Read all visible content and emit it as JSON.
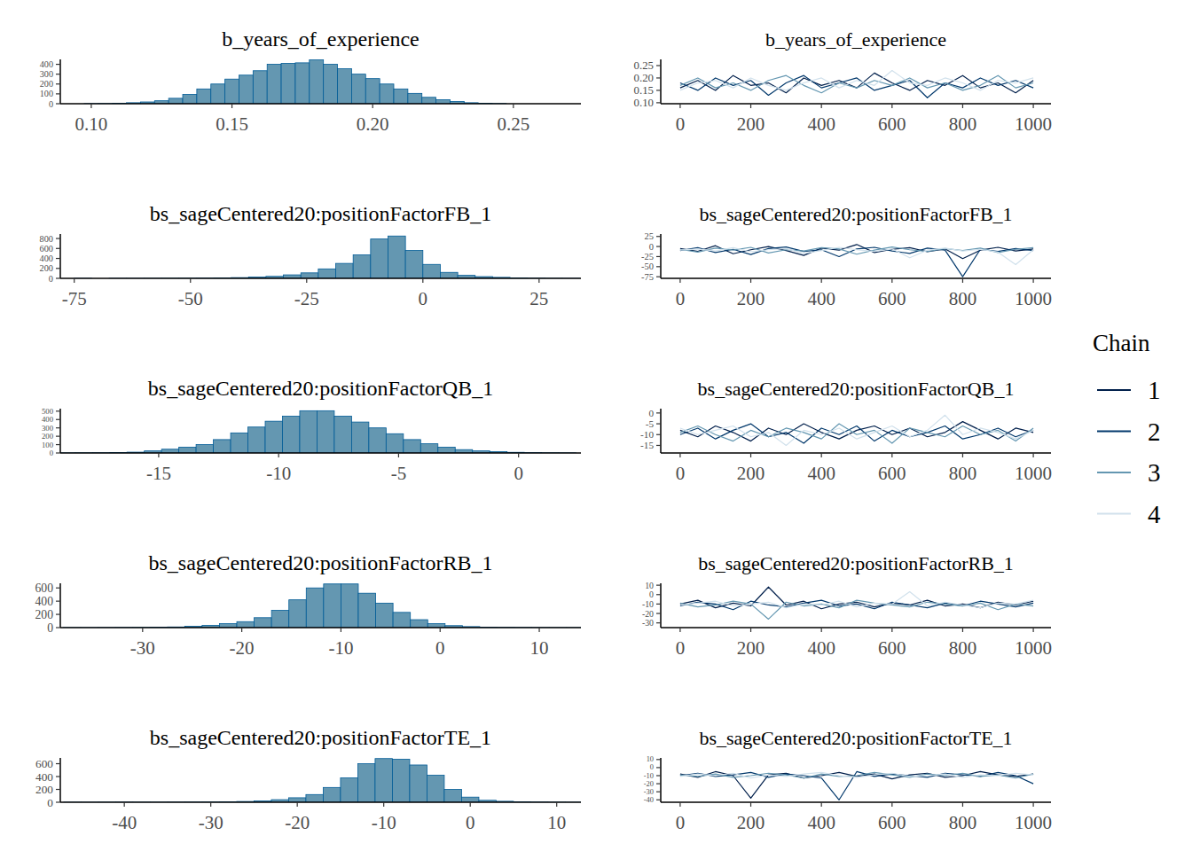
{
  "chart_data": [
    {
      "type": "histogram",
      "title": "b_years_of_experience",
      "color": "#6497b1",
      "bins": [
        0.0975,
        0.1025,
        0.1075,
        0.1125,
        0.1175,
        0.1225,
        0.1275,
        0.1325,
        0.1375,
        0.1425,
        0.1475,
        0.1525,
        0.1575,
        0.1625,
        0.1675,
        0.1725,
        0.1775,
        0.1825,
        0.1875,
        0.1925,
        0.1975,
        0.2025,
        0.2075,
        0.2125,
        0.2175,
        0.2225,
        0.2275,
        0.2325,
        0.2375,
        0.2425,
        0.2475
      ],
      "counts": [
        1,
        2,
        5,
        10,
        18,
        30,
        55,
        95,
        150,
        200,
        250,
        290,
        335,
        400,
        410,
        415,
        445,
        400,
        355,
        300,
        255,
        200,
        150,
        105,
        65,
        40,
        22,
        10,
        5,
        2
      ],
      "xlim": [
        0.089,
        0.274
      ],
      "xticks": [
        {
          "value": 0.1,
          "label": "0.10"
        },
        {
          "value": 0.15,
          "label": "0.15"
        },
        {
          "value": 0.2,
          "label": "0.20"
        },
        {
          "value": 0.25,
          "label": "0.25"
        }
      ],
      "ylim": [
        0,
        450
      ],
      "yticks": [
        0,
        100,
        200,
        300,
        400
      ]
    },
    {
      "type": "line",
      "title": "b_years_of_experience",
      "x": [
        0,
        50,
        100,
        150,
        200,
        250,
        300,
        350,
        400,
        450,
        500,
        550,
        600,
        650,
        700,
        750,
        800,
        850,
        900,
        950,
        1000
      ],
      "series": [
        {
          "color": "#011f4b",
          "values": [
            0.16,
            0.19,
            0.15,
            0.21,
            0.17,
            0.18,
            0.14,
            0.2,
            0.17,
            0.19,
            0.16,
            0.22,
            0.18,
            0.15,
            0.19,
            0.17,
            0.21,
            0.16,
            0.18,
            0.14,
            0.19
          ]
        },
        {
          "color": "#03396c",
          "values": [
            0.18,
            0.15,
            0.2,
            0.17,
            0.19,
            0.13,
            0.18,
            0.21,
            0.16,
            0.18,
            0.2,
            0.15,
            0.17,
            0.19,
            0.12,
            0.18,
            0.16,
            0.2,
            0.17,
            0.19,
            0.16
          ]
        },
        {
          "color": "#6497b1",
          "values": [
            0.17,
            0.2,
            0.16,
            0.18,
            0.15,
            0.19,
            0.21,
            0.17,
            0.14,
            0.18,
            0.16,
            0.19,
            0.17,
            0.2,
            0.16,
            0.18,
            0.15,
            0.17,
            0.21,
            0.16,
            0.18
          ]
        },
        {
          "color": "#d1e1ec",
          "values": [
            0.15,
            0.18,
            0.19,
            0.16,
            0.2,
            0.17,
            0.15,
            0.18,
            0.2,
            0.16,
            0.19,
            0.17,
            0.23,
            0.18,
            0.17,
            0.2,
            0.18,
            0.15,
            0.19,
            0.18,
            0.2
          ]
        }
      ],
      "xlim": [
        -55,
        1050
      ],
      "xticks": [
        0,
        200,
        400,
        600,
        800,
        1000
      ],
      "ylim": [
        0.096,
        0.275
      ],
      "yticks": [
        {
          "value": 0.1,
          "label": "0.10"
        },
        {
          "value": 0.15,
          "label": "0.15"
        },
        {
          "value": 0.2,
          "label": "0.20"
        },
        {
          "value": 0.25,
          "label": "0.25"
        }
      ]
    },
    {
      "type": "histogram",
      "title": "bs_sageCentered20:positionFactorFB_1",
      "color": "#6497b1",
      "bins": [
        -78.75,
        -75,
        -71.25,
        -67.5,
        -63.75,
        -60,
        -56.25,
        -52.5,
        -48.75,
        -45,
        -41.25,
        -37.5,
        -33.75,
        -30,
        -26.25,
        -22.5,
        -18.75,
        -15,
        -11.25,
        -7.5,
        -3.75,
        0,
        3.75,
        7.5,
        11.25,
        15,
        18.75,
        22.5,
        26.25,
        30,
        33.75
      ],
      "counts": [
        0,
        1,
        0,
        1,
        1,
        2,
        3,
        4,
        6,
        10,
        15,
        25,
        40,
        70,
        110,
        190,
        300,
        470,
        790,
        850,
        560,
        280,
        120,
        60,
        35,
        20,
        10,
        5,
        2,
        1
      ],
      "xlim": [
        -78,
        34
      ],
      "xticks": [
        -75,
        -50,
        -25,
        0,
        25
      ],
      "ylim": [
        0,
        890
      ],
      "yticks": [
        0,
        200,
        400,
        600,
        800
      ]
    },
    {
      "type": "line",
      "title": "bs_sageCentered20:positionFactorFB_1",
      "x": [
        0,
        50,
        100,
        150,
        200,
        250,
        300,
        350,
        400,
        450,
        500,
        550,
        600,
        650,
        700,
        750,
        800,
        850,
        900,
        950,
        1000
      ],
      "series": [
        {
          "color": "#011f4b",
          "values": [
            -5,
            -12,
            2,
            -18,
            -8,
            0,
            -10,
            -22,
            -4,
            -9,
            5,
            -15,
            -7,
            -3,
            -13,
            -6,
            -30,
            -9,
            -2,
            -11,
            -6
          ]
        },
        {
          "color": "#03396c",
          "values": [
            -10,
            -3,
            -15,
            -7,
            -20,
            -5,
            -1,
            -12,
            -8,
            -25,
            -6,
            -2,
            -11,
            -17,
            -4,
            -9,
            -75,
            -7,
            -12,
            -5,
            -10
          ]
        },
        {
          "color": "#6497b1",
          "values": [
            -7,
            -14,
            -4,
            -9,
            -2,
            -16,
            -8,
            -11,
            -3,
            -6,
            -19,
            -9,
            -1,
            -8,
            -12,
            -5,
            -10,
            -4,
            -15,
            -7,
            -3
          ]
        },
        {
          "color": "#d1e1ec",
          "values": [
            -9,
            -6,
            -11,
            -3,
            -13,
            -8,
            -5,
            -17,
            -10,
            -2,
            -8,
            -12,
            -6,
            -28,
            -9,
            -4,
            -11,
            -7,
            -14,
            -45,
            -8
          ]
        }
      ],
      "xlim": [
        -55,
        1050
      ],
      "xticks": [
        0,
        200,
        400,
        600,
        800,
        1000
      ],
      "ylim": [
        -79,
        31
      ],
      "yticks": [
        -75,
        -50,
        -25,
        0,
        25
      ]
    },
    {
      "type": "histogram",
      "title": "bs_sageCentered20:positionFactorQB_1",
      "color": "#6497b1",
      "bins": [
        -19.2,
        -18.48,
        -17.76,
        -17.04,
        -16.32,
        -15.6,
        -14.88,
        -14.16,
        -13.44,
        -12.72,
        -12,
        -11.28,
        -10.56,
        -9.84,
        -9.12,
        -8.4,
        -7.68,
        -6.96,
        -6.24,
        -5.52,
        -4.8,
        -4.08,
        -3.36,
        -2.64,
        -1.92,
        -1.2,
        -0.48,
        0.24,
        0.96,
        1.68,
        2.4
      ],
      "counts": [
        1,
        2,
        3,
        5,
        10,
        25,
        45,
        70,
        100,
        160,
        240,
        310,
        380,
        440,
        505,
        505,
        440,
        370,
        300,
        230,
        160,
        110,
        70,
        40,
        25,
        15,
        8,
        4,
        2,
        1
      ],
      "xlim": [
        -19.1,
        2.6
      ],
      "xticks": [
        -15,
        -10,
        -5,
        0
      ],
      "ylim": [
        0,
        530
      ],
      "yticks": [
        0,
        100,
        200,
        300,
        400,
        500
      ]
    },
    {
      "type": "line",
      "title": "bs_sageCentered20:positionFactorQB_1",
      "x": [
        0,
        50,
        100,
        150,
        200,
        250,
        300,
        350,
        400,
        450,
        500,
        550,
        600,
        650,
        700,
        750,
        800,
        850,
        900,
        950,
        1000
      ],
      "series": [
        {
          "name": "1",
          "color": "#011f4b",
          "values": [
            -8,
            -11,
            -6,
            -9,
            -13,
            -7,
            -10,
            -5,
            -9,
            -12,
            -8,
            -6,
            -10,
            -7,
            -11,
            -9,
            -4,
            -8,
            -12,
            -7,
            -9
          ]
        },
        {
          "name": "2",
          "color": "#03396c",
          "values": [
            -10,
            -7,
            -12,
            -8,
            -5,
            -11,
            -9,
            -14,
            -7,
            -10,
            -6,
            -13,
            -8,
            -11,
            -9,
            -6,
            -12,
            -10,
            -7,
            -11,
            -8
          ]
        },
        {
          "name": "3",
          "color": "#6497b1",
          "values": [
            -9,
            -6,
            -10,
            -13,
            -8,
            -11,
            -7,
            -9,
            -12,
            -5,
            -10,
            -8,
            -14,
            -7,
            -9,
            -11,
            -6,
            -10,
            -8,
            -13,
            -7
          ]
        },
        {
          "name": "4",
          "color": "#d1e1ec",
          "values": [
            -7,
            -10,
            -8,
            -6,
            -11,
            -9,
            -15,
            -8,
            -10,
            -7,
            -12,
            -9,
            -6,
            -11,
            -8,
            -1,
            -10,
            -7,
            -9,
            -12,
            -8
          ]
        }
      ],
      "legend": "right",
      "legend_title": "Chain",
      "xlim": [
        -55,
        1050
      ],
      "xticks": [
        0,
        200,
        400,
        600,
        800,
        1000
      ],
      "ylim": [
        -18.5,
        2
      ],
      "yticks": [
        -15,
        -10,
        -5,
        0
      ]
    },
    {
      "type": "histogram",
      "title": "bs_sageCentered20:positionFactorRB_1",
      "color": "#6497b1",
      "bins": [
        -38,
        -36.25,
        -34.5,
        -32.75,
        -31,
        -29.25,
        -27.5,
        -25.75,
        -24,
        -22.25,
        -20.5,
        -18.75,
        -17,
        -15.25,
        -13.5,
        -11.75,
        -10,
        -8.25,
        -6.5,
        -4.75,
        -3,
        -1.25,
        0.5,
        2.25,
        4,
        5.75,
        7.5,
        9.25,
        11,
        12.75,
        14.5
      ],
      "counts": [
        1,
        1,
        2,
        3,
        4,
        6,
        10,
        20,
        35,
        60,
        90,
        150,
        260,
        420,
        600,
        660,
        660,
        520,
        370,
        230,
        120,
        60,
        30,
        15,
        8,
        5,
        3,
        2,
        1,
        1
      ],
      "xlim": [
        -38.3,
        14.2
      ],
      "xticks": [
        -30,
        -20,
        -10,
        0,
        10
      ],
      "ylim": [
        0,
        670
      ],
      "yticks": [
        0,
        200,
        400,
        600
      ]
    },
    {
      "type": "line",
      "title": "bs_sageCentered20:positionFactorRB_1",
      "x": [
        0,
        50,
        100,
        150,
        200,
        250,
        300,
        350,
        400,
        450,
        500,
        550,
        600,
        650,
        700,
        750,
        800,
        850,
        900,
        950,
        1000
      ],
      "series": [
        {
          "color": "#011f4b",
          "values": [
            -10,
            -6,
            -14,
            -9,
            -12,
            8,
            -11,
            -7,
            -15,
            -10,
            -8,
            -13,
            -9,
            -11,
            -6,
            -12,
            -10,
            -14,
            -8,
            -11,
            -7
          ]
        },
        {
          "color": "#03396c",
          "values": [
            -12,
            -8,
            -10,
            -16,
            -7,
            -11,
            -13,
            -9,
            -6,
            -12,
            -10,
            -15,
            -8,
            -11,
            -14,
            -9,
            -12,
            -7,
            -10,
            -13,
            -9
          ]
        },
        {
          "color": "#6497b1",
          "values": [
            -9,
            -13,
            -11,
            -7,
            -10,
            -26,
            -8,
            -12,
            -10,
            -14,
            -6,
            -9,
            -11,
            -13,
            -8,
            -10,
            -12,
            -9,
            -16,
            -10,
            -12
          ]
        },
        {
          "color": "#d1e1ec",
          "values": [
            -11,
            -9,
            -7,
            -12,
            -10,
            -8,
            -14,
            -10,
            -11,
            -7,
            -13,
            -9,
            -10,
            3,
            -12,
            -8,
            -11,
            -14,
            -9,
            -10,
            -6
          ]
        }
      ],
      "xlim": [
        -55,
        1050
      ],
      "xticks": [
        0,
        200,
        400,
        600,
        800,
        1000
      ],
      "ylim": [
        -35,
        12
      ],
      "yticks": [
        -30,
        -20,
        -10,
        0,
        10
      ]
    },
    {
      "type": "histogram",
      "title": "bs_sageCentered20:positionFactorTE_1",
      "color": "#6497b1",
      "bins": [
        -47,
        -45,
        -43,
        -41,
        -39,
        -37,
        -35,
        -33,
        -31,
        -29,
        -27,
        -25,
        -23,
        -21,
        -19,
        -17,
        -15,
        -13,
        -11,
        -9,
        -7,
        -5,
        -3,
        -1,
        1,
        3,
        5,
        7,
        9,
        11,
        13
      ],
      "counts": [
        1,
        1,
        2,
        3,
        2,
        2,
        3,
        4,
        5,
        8,
        12,
        20,
        40,
        70,
        120,
        230,
        380,
        600,
        680,
        670,
        580,
        420,
        200,
        80,
        30,
        15,
        8,
        4,
        2,
        1
      ],
      "xlim": [
        -47.4,
        12.8
      ],
      "xticks": [
        -40,
        -30,
        -20,
        -10,
        0,
        10
      ],
      "ylim": [
        0,
        690
      ],
      "yticks": [
        0,
        200,
        400,
        600
      ]
    },
    {
      "type": "line",
      "title": "bs_sageCentered20:positionFactorTE_1",
      "x": [
        0,
        50,
        100,
        150,
        200,
        250,
        300,
        350,
        400,
        450,
        500,
        550,
        600,
        650,
        700,
        750,
        800,
        850,
        900,
        950,
        1000
      ],
      "series": [
        {
          "color": "#011f4b",
          "values": [
            -8,
            -12,
            -5,
            -10,
            -38,
            -9,
            -7,
            -13,
            -10,
            -6,
            -11,
            -8,
            -14,
            -9,
            -7,
            -12,
            -10,
            -5,
            -9,
            -11,
            -8
          ]
        },
        {
          "color": "#03396c",
          "values": [
            -10,
            -7,
            -11,
            -9,
            -6,
            -12,
            -8,
            -10,
            -13,
            -40,
            -5,
            -11,
            -8,
            -10,
            -12,
            -7,
            -9,
            -11,
            -6,
            -10,
            -20
          ]
        },
        {
          "color": "#6497b1",
          "values": [
            -9,
            -11,
            -8,
            -12,
            -10,
            -7,
            -9,
            -13,
            -8,
            -11,
            -10,
            -6,
            -9,
            -12,
            -8,
            -10,
            -7,
            -11,
            -9,
            -13,
            -8
          ]
        },
        {
          "color": "#d1e1ec",
          "values": [
            -11,
            -8,
            -10,
            -7,
            -13,
            -9,
            -11,
            -8,
            -6,
            -10,
            -12,
            -9,
            -7,
            -11,
            -10,
            -8,
            -12,
            -9,
            -10,
            -7,
            -9
          ]
        }
      ],
      "xlim": [
        -55,
        1050
      ],
      "xticks": [
        0,
        200,
        400,
        600,
        800,
        1000
      ],
      "ylim": [
        -43,
        12
      ],
      "yticks": [
        -40,
        -30,
        -20,
        -10,
        0,
        10
      ]
    }
  ]
}
